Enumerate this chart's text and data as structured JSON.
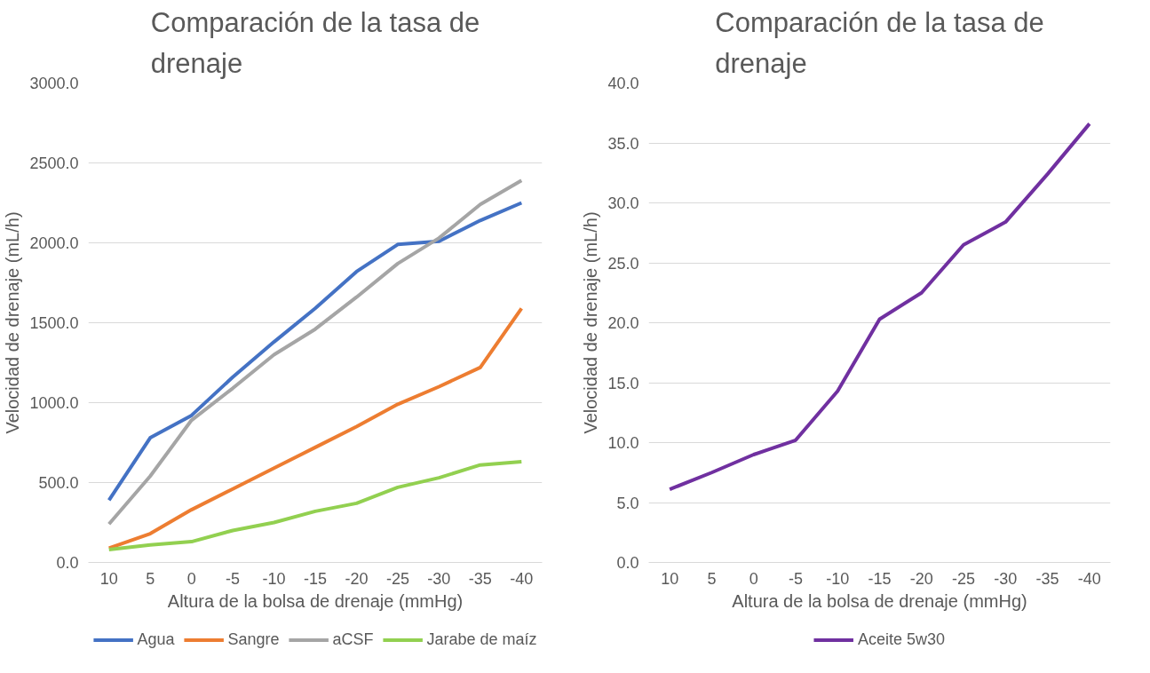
{
  "chart_data": [
    {
      "type": "line",
      "title": "Comparación de la tasa de drenaje",
      "xlabel": "Altura de la bolsa de drenaje (mmHg)",
      "ylabel": "Velocidad de drenaje (mL/h)",
      "categories": [
        "10",
        "5",
        "0",
        "-5",
        "-10",
        "-15",
        "-20",
        "-25",
        "-30",
        "-35",
        "-40"
      ],
      "ylim": [
        0,
        3000
      ],
      "yticks": [
        {
          "value": 0,
          "label": "0.0"
        },
        {
          "value": 500,
          "label": "500.0"
        },
        {
          "value": 1000,
          "label": "1000.0"
        },
        {
          "value": 1500,
          "label": "1500.0"
        },
        {
          "value": 2000,
          "label": "2000.0"
        },
        {
          "value": 2500,
          "label": "2500.0"
        },
        {
          "value": 3000,
          "label": "3000.0"
        }
      ],
      "grid": "y",
      "legend": "bottom",
      "marker": "none",
      "series": [
        {
          "name": "Agua",
          "color": "#4472c4",
          "values": [
            390,
            780,
            920,
            1160,
            1380,
            1590,
            1820,
            1990,
            2010,
            2140,
            2250
          ]
        },
        {
          "name": "Sangre",
          "color": "#ed7d31",
          "values": [
            90,
            180,
            330,
            460,
            590,
            720,
            850,
            990,
            1100,
            1220,
            1590
          ]
        },
        {
          "name": "aCSF",
          "color": "#a5a5a5",
          "values": [
            240,
            540,
            890,
            1090,
            1300,
            1460,
            1660,
            1870,
            2030,
            2240,
            2390
          ]
        },
        {
          "name": "Jarabe de maíz",
          "color": "#92d050",
          "values": [
            80,
            110,
            130,
            200,
            250,
            320,
            370,
            470,
            530,
            610,
            630
          ]
        }
      ]
    },
    {
      "type": "line",
      "title": "Comparación de la tasa de drenaje",
      "xlabel": "Altura de la bolsa de drenaje (mmHg)",
      "ylabel": "Velocidad de drenaje (mL/h)",
      "categories": [
        "10",
        "5",
        "0",
        "-5",
        "-10",
        "-15",
        "-20",
        "-25",
        "-30",
        "-35",
        "-40"
      ],
      "ylim": [
        0,
        40
      ],
      "yticks": [
        {
          "value": 0,
          "label": "0.0"
        },
        {
          "value": 5,
          "label": "5.0"
        },
        {
          "value": 10,
          "label": "10.0"
        },
        {
          "value": 15,
          "label": "15.0"
        },
        {
          "value": 20,
          "label": "20.0"
        },
        {
          "value": 25,
          "label": "25.0"
        },
        {
          "value": 30,
          "label": "30.0"
        },
        {
          "value": 35,
          "label": "35.0"
        },
        {
          "value": 40,
          "label": "40.0"
        }
      ],
      "grid": "y",
      "legend": "bottom",
      "marker": "none",
      "series": [
        {
          "name": "Aceite 5w30",
          "color": "#7030a0",
          "values": [
            6.1,
            7.5,
            9.0,
            10.2,
            14.3,
            20.3,
            22.5,
            26.5,
            28.4,
            32.4,
            36.6
          ]
        }
      ]
    }
  ]
}
